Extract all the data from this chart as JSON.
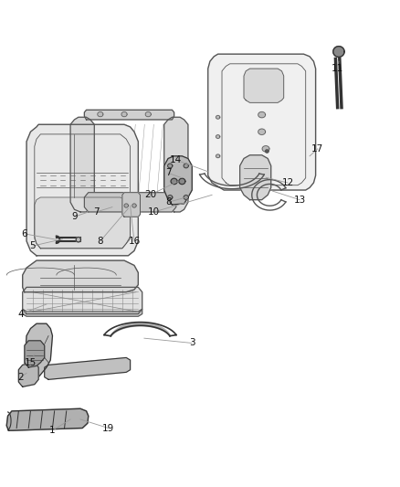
{
  "background_color": "#ffffff",
  "line_color": "#555555",
  "dark_color": "#333333",
  "gray_fill": "#e0e0e0",
  "mid_gray": "#cccccc",
  "dark_gray": "#aaaaaa",
  "figsize": [
    4.38,
    5.33
  ],
  "dpi": 100,
  "labels": {
    "1": [
      0.13,
      0.115,
      0.2,
      0.145
    ],
    "2": [
      0.05,
      0.225,
      0.1,
      0.24
    ],
    "3": [
      0.48,
      0.295,
      0.38,
      0.32
    ],
    "4": [
      0.05,
      0.355,
      0.13,
      0.375
    ],
    "5": [
      0.08,
      0.495,
      0.17,
      0.495
    ],
    "6": [
      0.06,
      0.52,
      0.14,
      0.515
    ],
    "7a": [
      0.24,
      0.565,
      0.29,
      0.555
    ],
    "7b": [
      0.42,
      0.645,
      0.48,
      0.63
    ],
    "8a": [
      0.25,
      0.505,
      0.31,
      0.51
    ],
    "8b": [
      0.42,
      0.585,
      0.49,
      0.575
    ],
    "9": [
      0.19,
      0.56,
      0.25,
      0.54
    ],
    "10": [
      0.38,
      0.565,
      0.52,
      0.595
    ],
    "11": [
      0.84,
      0.86,
      0.8,
      0.84
    ],
    "12": [
      0.72,
      0.625,
      0.67,
      0.62
    ],
    "13": [
      0.75,
      0.59,
      0.7,
      0.6
    ],
    "14": [
      0.43,
      0.67,
      0.48,
      0.655
    ],
    "15": [
      0.08,
      0.255,
      0.14,
      0.265
    ],
    "16": [
      0.34,
      0.505,
      0.37,
      0.505
    ],
    "17": [
      0.79,
      0.695,
      0.76,
      0.68
    ],
    "19": [
      0.27,
      0.12,
      0.18,
      0.14
    ],
    "20": [
      0.38,
      0.6,
      0.43,
      0.61
    ]
  }
}
